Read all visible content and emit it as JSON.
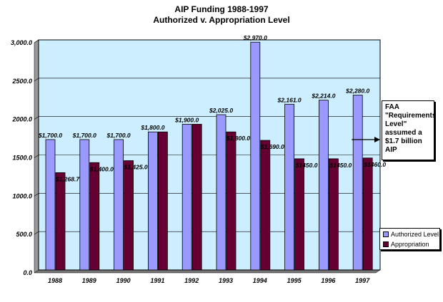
{
  "chart_data": {
    "type": "bar",
    "title": "AIP Funding 1988-1997",
    "subtitle": "Authorized v. Appropriation Level",
    "categories": [
      "1988",
      "1989",
      "1990",
      "1991",
      "1992",
      "1993",
      "1994",
      "1995",
      "1996",
      "1997"
    ],
    "series": [
      {
        "name": "Authorized Level",
        "color": "#9999ff",
        "values": [
          1700,
          1700,
          1700,
          1800,
          1900,
          2025,
          2970,
          2161,
          2214,
          2280
        ],
        "labels": [
          "$1,700.0",
          "$1,700.0",
          "$1,700.0",
          "$1,800.0",
          "$1,900.0",
          "$2,025.0",
          "$2,970.0",
          "$2,161.0",
          "$2,214.0",
          "$2,280.0"
        ]
      },
      {
        "name": "Appropriation",
        "color": "#660033",
        "values": [
          1268.7,
          1400,
          1425,
          1800,
          1900,
          1800,
          1690,
          1450,
          1450,
          1460
        ],
        "labels": [
          "$1,268.7",
          "$1,400.0",
          "$1,425.0",
          "",
          "",
          "$1,800.0",
          "$1,690.0",
          "$1450.0",
          "$1450.0",
          "$1460.0"
        ]
      }
    ],
    "ylim": [
      0,
      3000
    ],
    "yticks": [
      0,
      500,
      1000,
      1500,
      2000,
      2500,
      3000
    ],
    "ytick_labels": [
      "0.0",
      "500.0",
      "1000.0",
      "1500.0",
      "2000.0",
      "2500.0",
      "3,000.0"
    ],
    "plot_background": "#cceeff",
    "grid": true,
    "legend_position": "bottom-right",
    "annotation": {
      "text": "FAA \"Requirements Level\" assumed a $1.7 billion AIP",
      "points_to": "1997"
    }
  }
}
